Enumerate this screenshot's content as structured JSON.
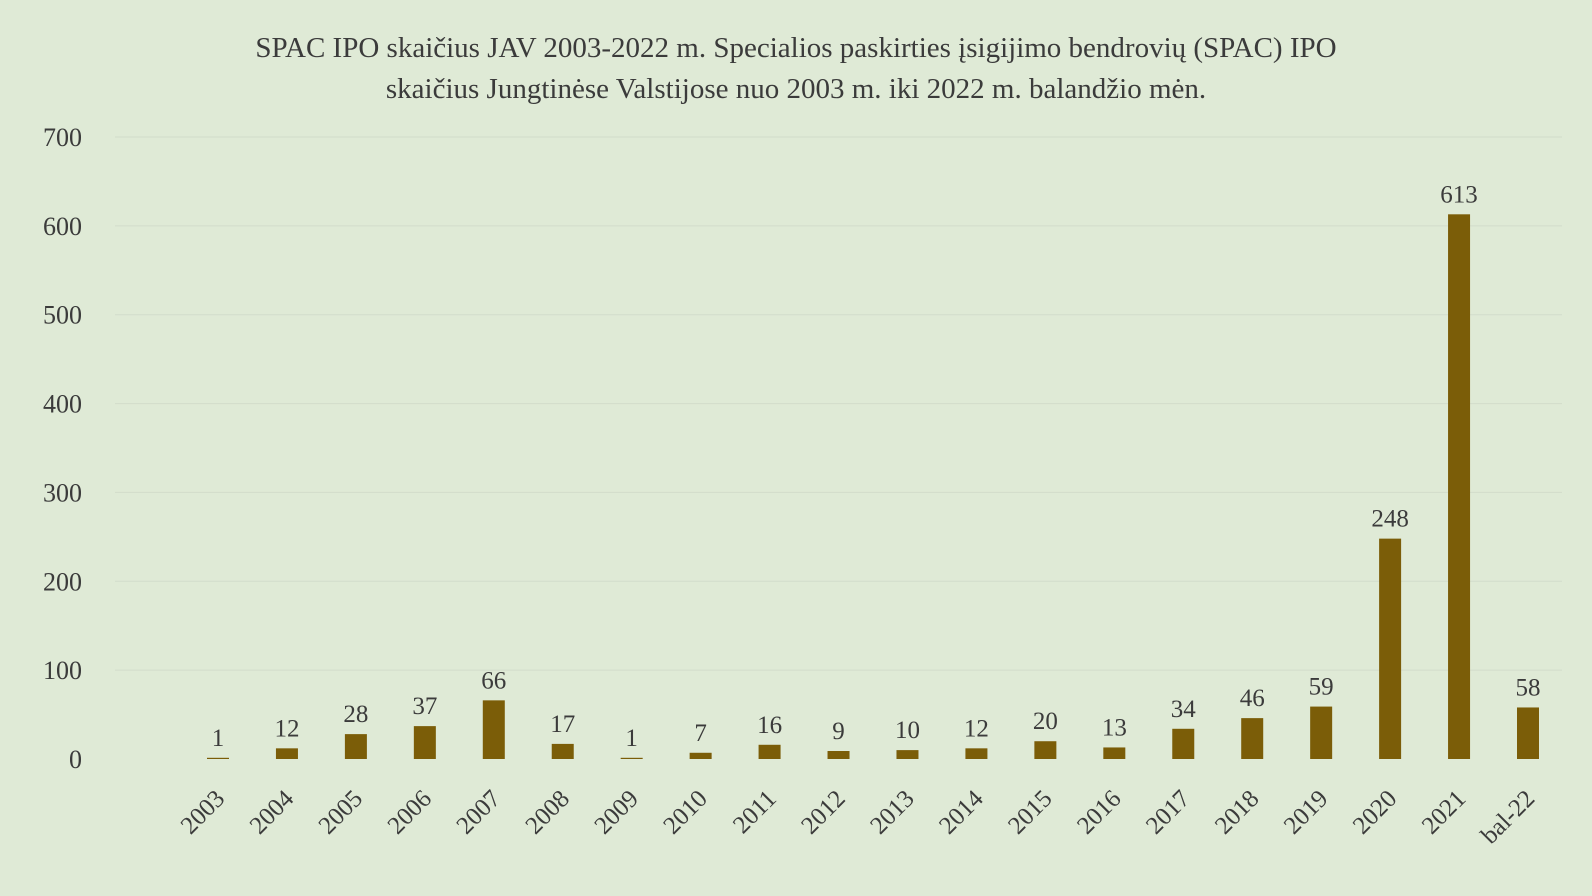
{
  "chart_data": {
    "type": "bar",
    "title_lines": [
      "SPAC IPO skaičius JAV 2003-2022 m. Specialios paskirties įsigijimo bendrovių (SPAC) IPO",
      "skaičius Jungtinėse Valstijose nuo 2003 m. iki 2022 m. balandžio mėn."
    ],
    "categories": [
      "2003",
      "2004",
      "2005",
      "2006",
      "2007",
      "2008",
      "2009",
      "2010",
      "2011",
      "2012",
      "2013",
      "2014",
      "2015",
      "2016",
      "2017",
      "2018",
      "2019",
      "2020",
      "2021",
      "bal-22"
    ],
    "values": [
      1,
      12,
      28,
      37,
      66,
      17,
      1,
      7,
      16,
      9,
      10,
      12,
      20,
      13,
      34,
      46,
      59,
      248,
      613,
      58
    ],
    "data_labels": [
      "1",
      "12",
      "28",
      "37",
      "66",
      "17",
      "1",
      "7",
      "16",
      "9",
      "10",
      "12",
      "20",
      "13",
      "34",
      "46",
      "59",
      "248",
      "613",
      "58"
    ],
    "y_ticks": [
      0,
      100,
      200,
      300,
      400,
      500,
      600,
      700
    ],
    "y_tick_labels": [
      "0",
      "100",
      "200",
      "300",
      "400",
      "500",
      "600",
      "700"
    ],
    "ylim": [
      0,
      700
    ],
    "grid": true,
    "legend": "none",
    "colors": {
      "bar": "#7b5d08",
      "background": "#dfead6",
      "grid": "#d2dccb",
      "text": "#3b3b3b"
    }
  }
}
